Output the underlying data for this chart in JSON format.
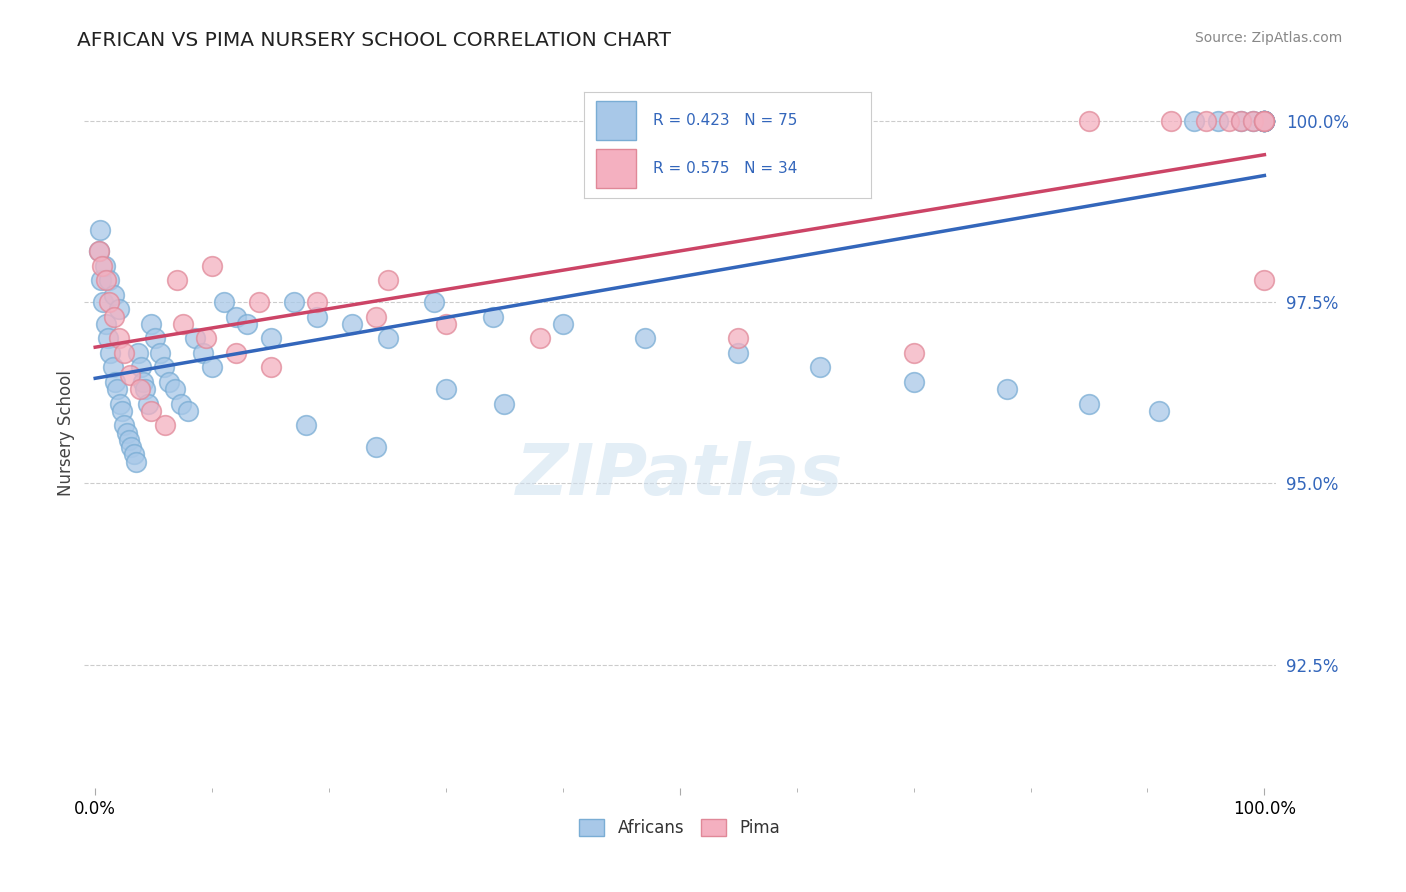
{
  "title": "AFRICAN VS PIMA NURSERY SCHOOL CORRELATION CHART",
  "source": "Source: ZipAtlas.com",
  "ylabel": "Nursery School",
  "ytick_values": [
    1.0,
    0.975,
    0.95,
    0.925
  ],
  "xlim": [
    -0.01,
    1.01
  ],
  "ylim": [
    0.908,
    1.006
  ],
  "africans_R": 0.423,
  "africans_N": 75,
  "pima_R": 0.575,
  "pima_N": 34,
  "africans_color": "#a8c8e8",
  "africans_edge_color": "#7aadd4",
  "africans_line_color": "#3366bb",
  "pima_color": "#f4b0c0",
  "pima_edge_color": "#e08898",
  "pima_line_color": "#cc4466",
  "legend_text_color": "#3366bb",
  "watermark": "ZIPatlas",
  "background_color": "#ffffff",
  "grid_color": "#cccccc",
  "africans_x": [
    0.003,
    0.005,
    0.007,
    0.009,
    0.011,
    0.013,
    0.015,
    0.017,
    0.019,
    0.021,
    0.023,
    0.025,
    0.027,
    0.029,
    0.031,
    0.033,
    0.035,
    0.037,
    0.039,
    0.041,
    0.043,
    0.045,
    0.048,
    0.051,
    0.055,
    0.059,
    0.063,
    0.068,
    0.073,
    0.079,
    0.085,
    0.092,
    0.1,
    0.11,
    0.12,
    0.13,
    0.15,
    0.17,
    0.19,
    0.22,
    0.25,
    0.29,
    0.34,
    0.4,
    0.47,
    0.55,
    0.3,
    0.35,
    0.18,
    0.24,
    0.62,
    0.7,
    0.78,
    0.85,
    0.91,
    0.94,
    0.96,
    0.98,
    0.99,
    1.0,
    1.0,
    1.0,
    1.0,
    1.0,
    1.0,
    1.0,
    1.0,
    1.0,
    1.0,
    1.0,
    0.004,
    0.008,
    0.012,
    0.016,
    0.02
  ],
  "africans_y": [
    0.982,
    0.978,
    0.975,
    0.972,
    0.97,
    0.968,
    0.966,
    0.964,
    0.963,
    0.961,
    0.96,
    0.958,
    0.957,
    0.956,
    0.955,
    0.954,
    0.953,
    0.968,
    0.966,
    0.964,
    0.963,
    0.961,
    0.972,
    0.97,
    0.968,
    0.966,
    0.964,
    0.963,
    0.961,
    0.96,
    0.97,
    0.968,
    0.966,
    0.975,
    0.973,
    0.972,
    0.97,
    0.975,
    0.973,
    0.972,
    0.97,
    0.975,
    0.973,
    0.972,
    0.97,
    0.968,
    0.963,
    0.961,
    0.958,
    0.955,
    0.966,
    0.964,
    0.963,
    0.961,
    0.96,
    1.0,
    1.0,
    1.0,
    1.0,
    1.0,
    1.0,
    1.0,
    1.0,
    1.0,
    1.0,
    1.0,
    1.0,
    1.0,
    1.0,
    1.0,
    0.985,
    0.98,
    0.978,
    0.976,
    0.974
  ],
  "pima_x": [
    0.003,
    0.006,
    0.009,
    0.012,
    0.016,
    0.02,
    0.025,
    0.03,
    0.038,
    0.048,
    0.06,
    0.075,
    0.095,
    0.12,
    0.15,
    0.19,
    0.24,
    0.3,
    0.38,
    0.25,
    0.14,
    0.1,
    0.07,
    0.55,
    0.7,
    0.85,
    0.92,
    0.95,
    0.97,
    0.98,
    0.99,
    1.0,
    1.0,
    1.0
  ],
  "pima_y": [
    0.982,
    0.98,
    0.978,
    0.975,
    0.973,
    0.97,
    0.968,
    0.965,
    0.963,
    0.96,
    0.958,
    0.972,
    0.97,
    0.968,
    0.966,
    0.975,
    0.973,
    0.972,
    0.97,
    0.978,
    0.975,
    0.98,
    0.978,
    0.97,
    0.968,
    1.0,
    1.0,
    1.0,
    1.0,
    1.0,
    1.0,
    1.0,
    1.0,
    0.978
  ]
}
